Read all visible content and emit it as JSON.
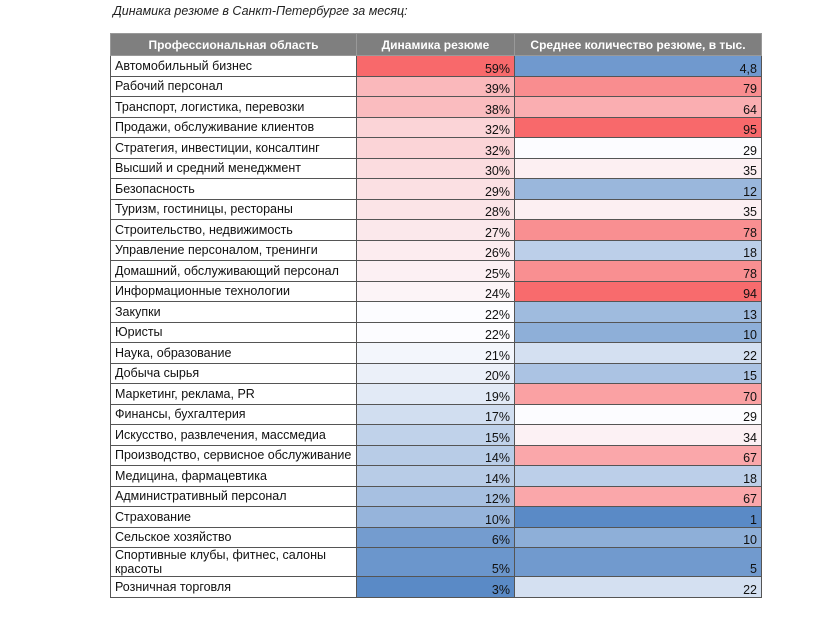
{
  "title": "Динамика резюме в Санкт-Петербурге за месяц:",
  "table": {
    "header": [
      "Профессиональная область",
      "Динамика резюме",
      "Среднее количество резюме, в тыс."
    ],
    "rows": [
      [
        "Автомобильный бизнес",
        "59%",
        "4,8"
      ],
      [
        "Рабочий персонал",
        "39%",
        "79"
      ],
      [
        "Транспорт, логистика, перевозки",
        "38%",
        "64"
      ],
      [
        "Продажи, обслуживание клиентов",
        "32%",
        "95"
      ],
      [
        "Стратегия, инвестиции, консалтинг",
        "32%",
        "29"
      ],
      [
        "Высший и средний менеджмент",
        "30%",
        "35"
      ],
      [
        "Безопасность",
        "29%",
        "12"
      ],
      [
        "Туризм, гостиницы, рестораны",
        "28%",
        "35"
      ],
      [
        "Строительство, недвижимость",
        "27%",
        "78"
      ],
      [
        "Управление персоналом, тренинги",
        "26%",
        "18"
      ],
      [
        "Домашний, обслуживающий персонал",
        "25%",
        "78"
      ],
      [
        "Информационные технологии",
        "24%",
        "94"
      ],
      [
        "Закупки",
        "22%",
        "13"
      ],
      [
        "Юристы",
        "22%",
        "10"
      ],
      [
        "Наука, образование",
        "21%",
        "22"
      ],
      [
        "Добыча сырья",
        "20%",
        "15"
      ],
      [
        "Маркетинг, реклама, PR",
        "19%",
        "70"
      ],
      [
        "Финансы, бухгалтерия",
        "17%",
        "29"
      ],
      [
        "Искусство, развлечения, массмедиа",
        "15%",
        "34"
      ],
      [
        "Производство, сервисное обслуживание",
        "14%",
        "67"
      ],
      [
        "Медицина, фармацевтика",
        "14%",
        "18"
      ],
      [
        "Административный персонал",
        "12%",
        "67"
      ],
      [
        "Страхование",
        "10%",
        "1"
      ],
      [
        "Сельское хозяйство",
        "6%",
        "10"
      ],
      [
        "Спортивные клубы, фитнес, салоны красоты",
        "5%",
        "5"
      ],
      [
        "Розничная торговля",
        "3%",
        "22"
      ]
    ]
  }
}
